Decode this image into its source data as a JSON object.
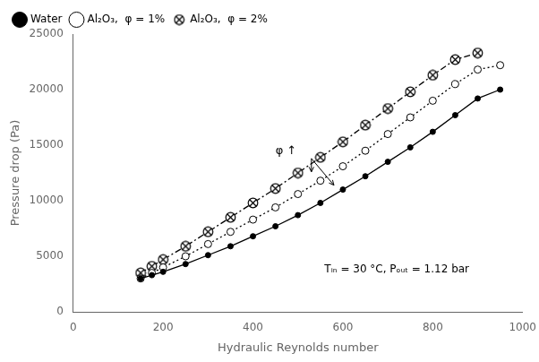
{
  "chart_data": {
    "type": "line",
    "x_label": "Hydraulic Reynolds number",
    "y_label": "Pressure drop (Pa)",
    "series": [
      {
        "name": "Water",
        "color": "black",
        "marker": "circle",
        "line_style": "solid",
        "x": [
          150,
          175,
          200,
          250,
          300,
          350,
          400,
          450,
          500,
          550,
          600,
          650,
          700,
          750,
          800,
          850,
          900,
          950
        ],
        "values": [
          3000,
          3300,
          3600,
          4300,
          5100,
          5900,
          6800,
          7700,
          8700,
          9800,
          11000,
          12200,
          13500,
          14800,
          16200,
          17700,
          19200,
          20000
        ]
      },
      {
        "name": "Al₂O₃,  φ = 1%",
        "color": "black",
        "marker": "open circle",
        "line_style": "dotted",
        "x": [
          150,
          175,
          200,
          250,
          300,
          350,
          400,
          450,
          500,
          550,
          600,
          650,
          700,
          750,
          800,
          850,
          900,
          950
        ],
        "values": [
          3000,
          3500,
          4000,
          5000,
          6100,
          7200,
          8300,
          9400,
          10600,
          11800,
          13100,
          14500,
          16000,
          17500,
          19000,
          20500,
          21800,
          22200
        ]
      },
      {
        "name": "Al₂O₃,  φ = 2%",
        "color": "black",
        "marker": "circled x",
        "line_style": "dashdot",
        "x": [
          150,
          175,
          200,
          250,
          300,
          350,
          400,
          450,
          500,
          550,
          600,
          650,
          700,
          750,
          800,
          850,
          900
        ],
        "values": [
          3500,
          4100,
          4700,
          5900,
          7200,
          8500,
          9800,
          11100,
          12500,
          13900,
          15300,
          16800,
          18300,
          19800,
          21300,
          22700,
          23300
        ]
      }
    ],
    "xlim": [
      0,
      1000
    ],
    "ylim": [
      0,
      25000
    ],
    "xticks": [
      0,
      200,
      400,
      600,
      800,
      1000
    ],
    "yticks": [
      0,
      5000,
      10000,
      15000,
      20000,
      25000
    ],
    "grid": false,
    "legend": "upper left",
    "annotations": [
      {
        "text": "φ ↑",
        "x": 450,
        "y": 14200
      },
      {
        "text": "Tᵢₙ = 30 °C, Pₒᵤₜ = 1.12 bar",
        "x": 720,
        "y": 3800
      }
    ],
    "arrows": [
      {
        "from": [
          530,
          13800
        ],
        "to": [
          530,
          12600
        ]
      },
      {
        "from": [
          530,
          13800
        ],
        "to": [
          580,
          11400
        ]
      }
    ]
  }
}
